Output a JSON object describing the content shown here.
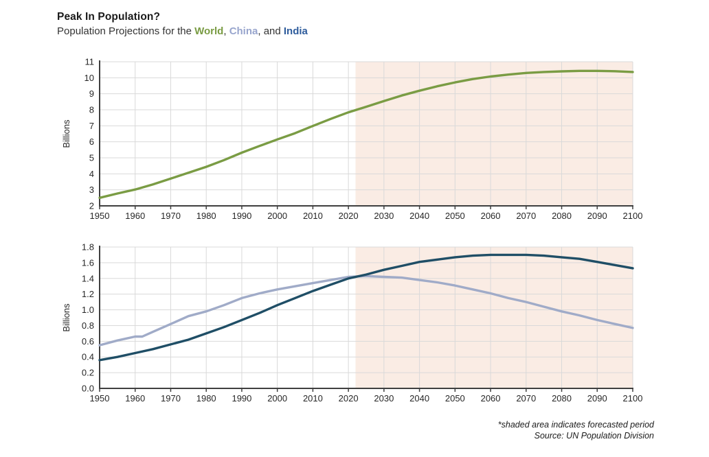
{
  "header": {
    "title": "Peak In Population?",
    "subtitle_prefix": "Population Projections for the ",
    "world_label": "World",
    "sep1": ", ",
    "china_label": "China",
    "sep2": ", and ",
    "india_label": "India"
  },
  "footer": {
    "note": "*shaded area indicates forecasted period",
    "source": "Source: UN Population Division"
  },
  "colors": {
    "world": "#7a9c44",
    "china": "#a0abc8",
    "india": "#1f4e66",
    "world_subtitle": "#7a9c44",
    "china_subtitle": "#98a5cd",
    "india_subtitle": "#2e5c9c",
    "forecast_shade": "#f5d9c9",
    "grid": "#d9d9d9",
    "axis": "#3f3f3f",
    "tick_text": "#262626"
  },
  "chart_data": [
    {
      "type": "line",
      "name": "world-population-chart",
      "ylabel": "Billions",
      "xlabel": "",
      "grid": true,
      "legend_position": "none",
      "xlim": [
        1950,
        2100
      ],
      "ylim": [
        2,
        11
      ],
      "xticks": [
        1950,
        1960,
        1970,
        1980,
        1990,
        2000,
        2010,
        2020,
        2030,
        2040,
        2050,
        2060,
        2070,
        2080,
        2090,
        2100
      ],
      "yticks": [
        2,
        3,
        4,
        5,
        6,
        7,
        8,
        9,
        10,
        11
      ],
      "ytick_labels": [
        "2",
        "3",
        "4",
        "5",
        "6",
        "7",
        "8",
        "9",
        "10",
        "11"
      ],
      "forecast_start": 2022,
      "series": [
        {
          "name": "World",
          "color": "#7a9c44",
          "width": 3.4,
          "points": [
            [
              1950,
              2.5
            ],
            [
              1955,
              2.77
            ],
            [
              1960,
              3.02
            ],
            [
              1965,
              3.34
            ],
            [
              1970,
              3.7
            ],
            [
              1975,
              4.07
            ],
            [
              1980,
              4.44
            ],
            [
              1985,
              4.86
            ],
            [
              1990,
              5.32
            ],
            [
              1995,
              5.74
            ],
            [
              2000,
              6.15
            ],
            [
              2005,
              6.54
            ],
            [
              2010,
              6.99
            ],
            [
              2015,
              7.43
            ],
            [
              2020,
              7.84
            ],
            [
              2025,
              8.19
            ],
            [
              2030,
              8.55
            ],
            [
              2035,
              8.89
            ],
            [
              2040,
              9.19
            ],
            [
              2045,
              9.47
            ],
            [
              2050,
              9.71
            ],
            [
              2055,
              9.92
            ],
            [
              2060,
              10.08
            ],
            [
              2065,
              10.2
            ],
            [
              2070,
              10.3
            ],
            [
              2075,
              10.36
            ],
            [
              2080,
              10.4
            ],
            [
              2085,
              10.43
            ],
            [
              2090,
              10.43
            ],
            [
              2095,
              10.41
            ],
            [
              2100,
              10.36
            ]
          ]
        }
      ]
    },
    {
      "type": "line",
      "name": "china-india-population-chart",
      "ylabel": "Billions",
      "xlabel": "",
      "grid": true,
      "legend_position": "none",
      "xlim": [
        1950,
        2100
      ],
      "ylim": [
        0,
        1.8
      ],
      "xticks": [
        1950,
        1960,
        1970,
        1980,
        1990,
        2000,
        2010,
        2020,
        2030,
        2040,
        2050,
        2060,
        2070,
        2080,
        2090,
        2100
      ],
      "yticks": [
        0,
        0.2,
        0.4,
        0.6,
        0.8,
        1.0,
        1.2,
        1.4,
        1.6,
        1.8
      ],
      "ytick_labels": [
        "0.0",
        "0.2",
        "0.4",
        "0.6",
        "0.8",
        "1.0",
        "1.2",
        "1.4",
        "1.6",
        "1.8"
      ],
      "forecast_start": 2022,
      "series": [
        {
          "name": "China",
          "color": "#a0abc8",
          "width": 3.4,
          "points": [
            [
              1950,
              0.55
            ],
            [
              1955,
              0.61
            ],
            [
              1960,
              0.66
            ],
            [
              1962,
              0.66
            ],
            [
              1965,
              0.72
            ],
            [
              1970,
              0.82
            ],
            [
              1975,
              0.92
            ],
            [
              1980,
              0.98
            ],
            [
              1985,
              1.06
            ],
            [
              1990,
              1.15
            ],
            [
              1995,
              1.21
            ],
            [
              2000,
              1.26
            ],
            [
              2005,
              1.3
            ],
            [
              2010,
              1.34
            ],
            [
              2015,
              1.38
            ],
            [
              2020,
              1.42
            ],
            [
              2025,
              1.43
            ],
            [
              2030,
              1.42
            ],
            [
              2035,
              1.41
            ],
            [
              2040,
              1.38
            ],
            [
              2045,
              1.35
            ],
            [
              2050,
              1.31
            ],
            [
              2055,
              1.26
            ],
            [
              2060,
              1.21
            ],
            [
              2065,
              1.15
            ],
            [
              2070,
              1.1
            ],
            [
              2075,
              1.04
            ],
            [
              2080,
              0.98
            ],
            [
              2085,
              0.93
            ],
            [
              2090,
              0.87
            ],
            [
              2095,
              0.82
            ],
            [
              2100,
              0.77
            ]
          ]
        },
        {
          "name": "India",
          "color": "#1f4e66",
          "width": 3.4,
          "points": [
            [
              1950,
              0.36
            ],
            [
              1955,
              0.4
            ],
            [
              1960,
              0.45
            ],
            [
              1965,
              0.5
            ],
            [
              1970,
              0.56
            ],
            [
              1975,
              0.62
            ],
            [
              1980,
              0.7
            ],
            [
              1985,
              0.78
            ],
            [
              1990,
              0.87
            ],
            [
              1995,
              0.96
            ],
            [
              2000,
              1.06
            ],
            [
              2005,
              1.15
            ],
            [
              2010,
              1.24
            ],
            [
              2015,
              1.32
            ],
            [
              2020,
              1.4
            ],
            [
              2025,
              1.45
            ],
            [
              2030,
              1.51
            ],
            [
              2035,
              1.56
            ],
            [
              2040,
              1.61
            ],
            [
              2045,
              1.64
            ],
            [
              2050,
              1.67
            ],
            [
              2055,
              1.69
            ],
            [
              2060,
              1.7
            ],
            [
              2065,
              1.7
            ],
            [
              2070,
              1.7
            ],
            [
              2075,
              1.69
            ],
            [
              2080,
              1.67
            ],
            [
              2085,
              1.65
            ],
            [
              2090,
              1.61
            ],
            [
              2095,
              1.57
            ],
            [
              2100,
              1.53
            ]
          ]
        }
      ]
    }
  ]
}
